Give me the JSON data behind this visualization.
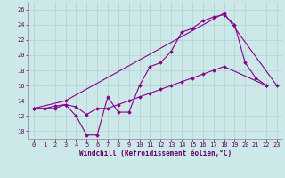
{
  "bg_color": "#cce8e8",
  "line_color": "#880088",
  "xlim": [
    -0.5,
    23.5
  ],
  "ylim": [
    9.0,
    27.0
  ],
  "yticks": [
    10,
    12,
    14,
    16,
    18,
    20,
    22,
    24,
    26
  ],
  "xticks": [
    0,
    1,
    2,
    3,
    4,
    5,
    6,
    7,
    8,
    9,
    10,
    11,
    12,
    13,
    14,
    15,
    16,
    17,
    18,
    19,
    20,
    21,
    22,
    23
  ],
  "xlabel": "Windchill (Refroidissement éolien,°C)",
  "line1_x": [
    0,
    1,
    2,
    3,
    4,
    5,
    6,
    7,
    8,
    9,
    10,
    11,
    12,
    13,
    14,
    15,
    16,
    17,
    18,
    19,
    20,
    21,
    22
  ],
  "line1_y": [
    13,
    13,
    13,
    13.5,
    12,
    9.5,
    9.5,
    14.5,
    12.5,
    12.5,
    16,
    18.5,
    19,
    20.5,
    23,
    23.5,
    24.5,
    25,
    25.3,
    24,
    19,
    17,
    16
  ],
  "line2_x": [
    0,
    1,
    2,
    3,
    4,
    5,
    6,
    7,
    8,
    9,
    10,
    11,
    12,
    13,
    14,
    15,
    16,
    17,
    18,
    22
  ],
  "line2_y": [
    13,
    13,
    13.3,
    13.5,
    13.2,
    12.2,
    13,
    13,
    13.5,
    14,
    14.5,
    15,
    15.5,
    16,
    16.5,
    17,
    17.5,
    18,
    18.5,
    16
  ],
  "line3_x": [
    0,
    3,
    18,
    23
  ],
  "line3_y": [
    13,
    14,
    25.5,
    16
  ]
}
